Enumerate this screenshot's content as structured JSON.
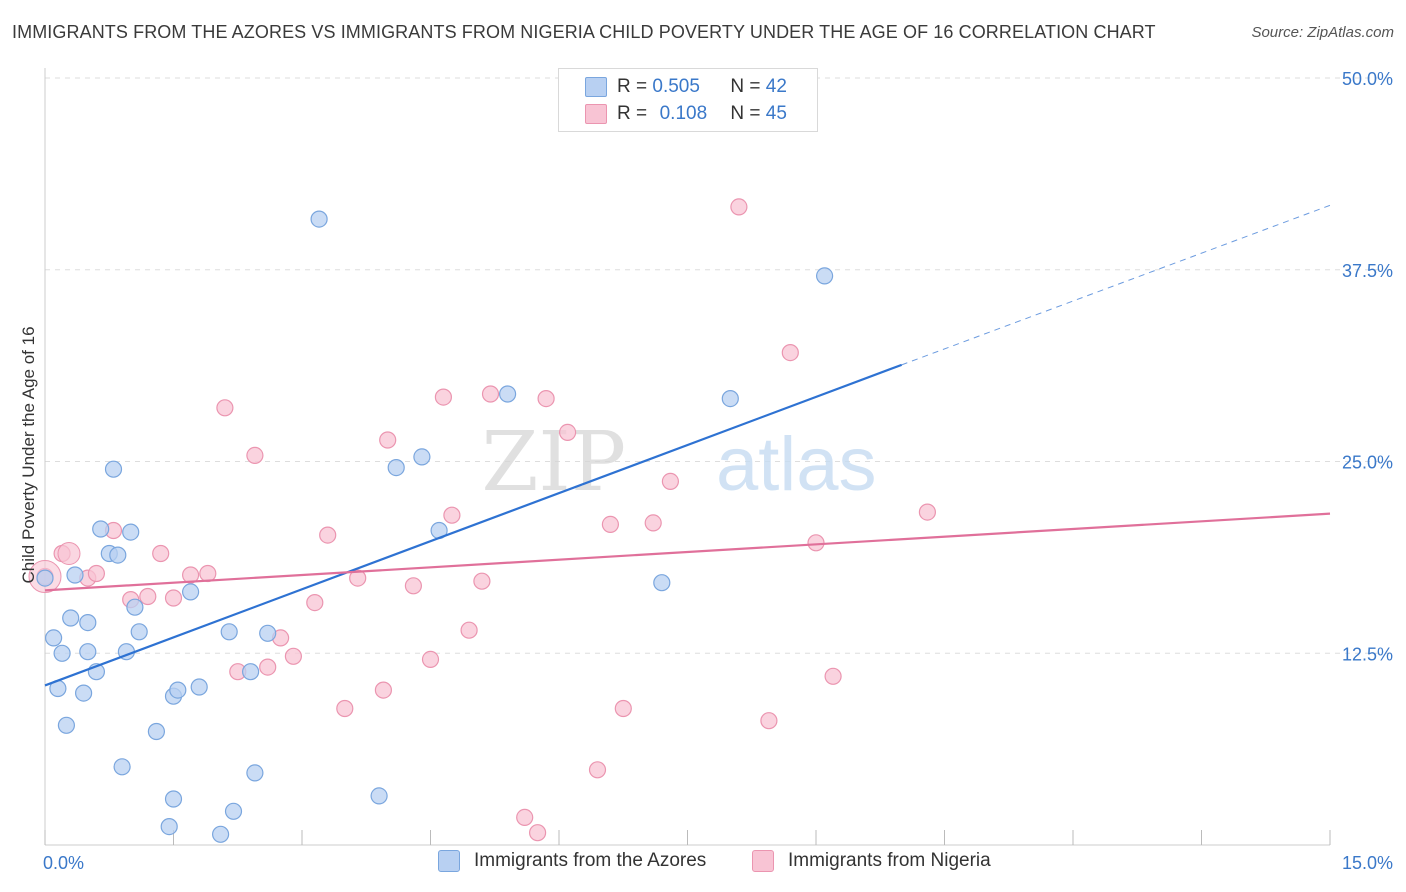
{
  "header": {
    "title": "IMMIGRANTS FROM THE AZORES VS IMMIGRANTS FROM NIGERIA CHILD POVERTY UNDER THE AGE OF 16 CORRELATION CHART",
    "source": "Source: ZipAtlas.com"
  },
  "watermark": {
    "part1": "ZIP",
    "part2": "atlas"
  },
  "legend_top": {
    "r_label": "R =",
    "n_label": "N =",
    "azores": {
      "r": "0.505",
      "n": "42"
    },
    "nigeria": {
      "r": "0.108",
      "n": "45"
    }
  },
  "colors": {
    "azores_fill": "#b8d0f2",
    "azores_stroke": "#7aa6de",
    "azores_line": "#2e72d2",
    "nigeria_fill": "#f8c4d4",
    "nigeria_stroke": "#eb95b0",
    "nigeria_line": "#e0709a",
    "axis_label_color": "#3a78c9",
    "grid": "#dddddd"
  },
  "chart_data": {
    "type": "scatter",
    "title": "IMMIGRANTS FROM THE AZORES VS IMMIGRANTS FROM NIGERIA CHILD POVERTY UNDER THE AGE OF 16 CORRELATION CHART",
    "xlabel": "",
    "ylabel": "Child Poverty Under the Age of 16",
    "xlim": [
      0,
      15
    ],
    "ylim": [
      0,
      50
    ],
    "x_tick_labels": [
      "0.0%",
      "15.0%"
    ],
    "y_ticks": [
      12.5,
      25.0,
      37.5,
      50.0
    ],
    "y_tick_labels": [
      "12.5%",
      "25.0%",
      "37.5%",
      "50.0%"
    ],
    "grid": true,
    "legend_position": "bottom",
    "series": [
      {
        "name": "Immigrants from the Azores",
        "r": 0.505,
        "n": 42,
        "trend": {
          "x0": 0.0,
          "y0": 10.4,
          "x1": 10.0,
          "y1": 31.3,
          "dashed_to_x": 15.0,
          "dashed_to_y": 41.7
        },
        "points": [
          [
            0.0,
            17.4
          ],
          [
            0.1,
            13.5
          ],
          [
            0.15,
            10.2
          ],
          [
            0.2,
            12.5
          ],
          [
            0.25,
            7.8
          ],
          [
            0.3,
            14.8
          ],
          [
            0.35,
            17.6
          ],
          [
            0.45,
            9.9
          ],
          [
            0.5,
            12.6
          ],
          [
            0.5,
            14.5
          ],
          [
            0.6,
            11.3
          ],
          [
            0.65,
            20.6
          ],
          [
            0.75,
            19.0
          ],
          [
            0.8,
            24.5
          ],
          [
            0.85,
            18.9
          ],
          [
            0.9,
            5.1
          ],
          [
            0.95,
            12.6
          ],
          [
            1.0,
            20.4
          ],
          [
            1.05,
            15.5
          ],
          [
            1.1,
            13.9
          ],
          [
            1.3,
            7.4
          ],
          [
            1.45,
            1.2
          ],
          [
            1.5,
            3.0
          ],
          [
            1.5,
            9.7
          ],
          [
            1.55,
            10.1
          ],
          [
            1.7,
            16.5
          ],
          [
            1.8,
            10.3
          ],
          [
            2.05,
            0.7
          ],
          [
            2.15,
            13.9
          ],
          [
            2.2,
            2.2
          ],
          [
            2.4,
            11.3
          ],
          [
            2.45,
            4.7
          ],
          [
            2.6,
            13.8
          ],
          [
            3.2,
            40.8
          ],
          [
            3.9,
            3.2
          ],
          [
            4.1,
            24.6
          ],
          [
            4.4,
            25.3
          ],
          [
            4.6,
            20.5
          ],
          [
            5.4,
            29.4
          ],
          [
            7.2,
            17.1
          ],
          [
            8.0,
            29.1
          ],
          [
            9.1,
            37.1
          ]
        ]
      },
      {
        "name": "Immigrants from Nigeria",
        "r": 0.108,
        "n": 45,
        "trend": {
          "x0": 0.0,
          "y0": 16.6,
          "x1": 15.0,
          "y1": 21.6
        },
        "points": [
          [
            0.0,
            17.5
          ],
          [
            0.2,
            19.0
          ],
          [
            0.5,
            17.4
          ],
          [
            0.6,
            17.7
          ],
          [
            0.8,
            20.5
          ],
          [
            1.0,
            16.0
          ],
          [
            1.2,
            16.2
          ],
          [
            1.35,
            19.0
          ],
          [
            1.5,
            16.1
          ],
          [
            1.7,
            17.6
          ],
          [
            1.9,
            17.7
          ],
          [
            2.1,
            28.5
          ],
          [
            2.25,
            11.3
          ],
          [
            2.45,
            25.4
          ],
          [
            2.6,
            11.6
          ],
          [
            2.75,
            13.5
          ],
          [
            2.9,
            12.3
          ],
          [
            3.15,
            15.8
          ],
          [
            3.3,
            20.2
          ],
          [
            3.5,
            8.9
          ],
          [
            3.65,
            17.4
          ],
          [
            3.95,
            10.1
          ],
          [
            4.0,
            26.4
          ],
          [
            4.3,
            16.9
          ],
          [
            4.5,
            12.1
          ],
          [
            4.65,
            29.2
          ],
          [
            4.75,
            21.5
          ],
          [
            4.95,
            14.0
          ],
          [
            5.1,
            17.2
          ],
          [
            5.2,
            29.4
          ],
          [
            5.6,
            1.8
          ],
          [
            5.75,
            0.8
          ],
          [
            5.85,
            29.1
          ],
          [
            6.1,
            26.9
          ],
          [
            6.45,
            4.9
          ],
          [
            6.6,
            20.9
          ],
          [
            6.75,
            8.9
          ],
          [
            7.1,
            21.0
          ],
          [
            7.3,
            23.7
          ],
          [
            8.1,
            41.6
          ],
          [
            8.45,
            8.1
          ],
          [
            8.7,
            32.1
          ],
          [
            9.0,
            19.7
          ],
          [
            9.2,
            11.0
          ],
          [
            10.3,
            21.7
          ]
        ]
      }
    ]
  }
}
